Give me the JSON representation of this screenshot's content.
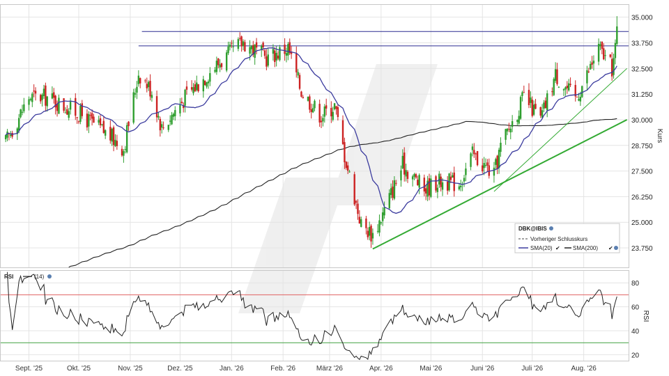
{
  "chart_data": {
    "type": "candlestick",
    "main": {
      "ylabel": "Kurs",
      "ylim": [
        22.8,
        35.6
      ],
      "yticks": [
        23.75,
        25.0,
        26.25,
        27.5,
        28.75,
        30.0,
        31.25,
        32.5,
        33.75,
        35.0
      ],
      "ytick_labels": [
        "23.750",
        "25.000",
        "26.250",
        "27.500",
        "28.750",
        "30.000",
        "31.250",
        "32.500",
        "33.750",
        "35.000"
      ],
      "legend_position": "bottom-right",
      "legend": {
        "symbol": "DBK@IBIS",
        "prev_close": "Vorheriger Schlusskurs",
        "sma20": "SMA(20)",
        "sma200": "SMA(200)"
      },
      "resistance_lines": [
        33.6,
        34.3
      ],
      "anchor_closes": [
        {
          "date": "2025-08-18",
          "close": 28.9
        },
        {
          "date": "2025-09-01",
          "close": 31.1
        },
        {
          "date": "2025-09-12",
          "close": 31.1
        },
        {
          "date": "2025-10-01",
          "close": 30.3
        },
        {
          "date": "2025-10-20",
          "close": 29.2
        },
        {
          "date": "2025-10-28",
          "close": 28.6
        },
        {
          "date": "2025-11-06",
          "close": 32.3
        },
        {
          "date": "2025-11-14",
          "close": 31.4
        },
        {
          "date": "2025-11-20",
          "close": 29.6
        },
        {
          "date": "2025-12-05",
          "close": 31.2
        },
        {
          "date": "2025-12-22",
          "close": 32.6
        },
        {
          "date": "2026-01-08",
          "close": 33.8
        },
        {
          "date": "2026-01-22",
          "close": 33.0
        },
        {
          "date": "2026-02-04",
          "close": 33.5
        },
        {
          "date": "2026-02-12",
          "close": 31.4
        },
        {
          "date": "2026-02-24",
          "close": 30.2
        },
        {
          "date": "2026-03-04",
          "close": 30.7
        },
        {
          "date": "2026-03-10",
          "close": 28.3
        },
        {
          "date": "2026-03-20",
          "close": 24.9
        },
        {
          "date": "2026-03-27",
          "close": 24.4
        },
        {
          "date": "2026-04-02",
          "close": 25.4
        },
        {
          "date": "2026-04-14",
          "close": 27.8
        },
        {
          "date": "2026-04-27",
          "close": 26.6
        },
        {
          "date": "2026-05-05",
          "close": 27.0
        },
        {
          "date": "2026-05-18",
          "close": 26.9
        },
        {
          "date": "2026-05-26",
          "close": 28.3
        },
        {
          "date": "2026-06-08",
          "close": 27.3
        },
        {
          "date": "2026-06-12",
          "close": 28.7
        },
        {
          "date": "2026-06-26",
          "close": 31.1
        },
        {
          "date": "2026-07-06",
          "close": 30.0
        },
        {
          "date": "2026-07-15",
          "close": 32.2
        },
        {
          "date": "2026-07-27",
          "close": 31.0
        },
        {
          "date": "2026-08-03",
          "close": 32.2
        },
        {
          "date": "2026-08-10",
          "close": 33.5
        },
        {
          "date": "2026-08-18",
          "close": 32.5
        },
        {
          "date": "2026-08-20",
          "close": 33.4
        },
        {
          "date": "2026-08-21",
          "close": 34.6
        }
      ],
      "trendlines": [
        {
          "from": {
            "date": "2026-03-27",
            "value": 23.7
          },
          "to": {
            "date": "2026-08-27",
            "value": 30.0
          },
          "color": "#33aa33",
          "width": 2
        },
        {
          "from": {
            "date": "2026-06-08",
            "value": 26.5
          },
          "to": {
            "date": "2026-08-27",
            "value": 32.5
          },
          "color": "#33aa33",
          "width": 1
        }
      ]
    },
    "rsi": {
      "label": "RSI",
      "period_label": "(14)",
      "ylabel": "RSI",
      "ylim": [
        15,
        90
      ],
      "yticks": [
        20,
        40,
        60,
        80
      ],
      "ytick_labels": [
        "20",
        "40",
        "60",
        "80"
      ],
      "overbought": 70,
      "oversold": 30
    },
    "x_axis": {
      "start": "2025-08-15",
      "end": "2026-08-28",
      "ticks": [
        {
          "date": "2025-09-01",
          "label": "Sept. '25"
        },
        {
          "date": "2025-10-01",
          "label": "Okt. '25"
        },
        {
          "date": "2025-11-01",
          "label": "Nov. '25"
        },
        {
          "date": "2025-12-01",
          "label": "Dez. '25"
        },
        {
          "date": "2026-01-01",
          "label": "Jan. '26"
        },
        {
          "date": "2026-02-01",
          "label": "Feb. '26"
        },
        {
          "date": "2026-03-01",
          "label": "März '26"
        },
        {
          "date": "2026-04-01",
          "label": "Apr. '26"
        },
        {
          "date": "2026-05-01",
          "label": "Mai '26"
        },
        {
          "date": "2026-06-01",
          "label": "Juni '26"
        },
        {
          "date": "2026-07-01",
          "label": "Juli '26"
        },
        {
          "date": "2026-08-01",
          "label": "Aug. '26"
        }
      ]
    },
    "colors": {
      "up": "#2e9e2e",
      "down": "#cc2222",
      "sma20": "#3b3b9e",
      "sma200": "#222222",
      "resistance": "#2a2a90",
      "rsi_line": "#222222",
      "rsi_upper": "#e06060",
      "rsi_lower": "#40a040",
      "grid": "#e4e4e4"
    }
  }
}
